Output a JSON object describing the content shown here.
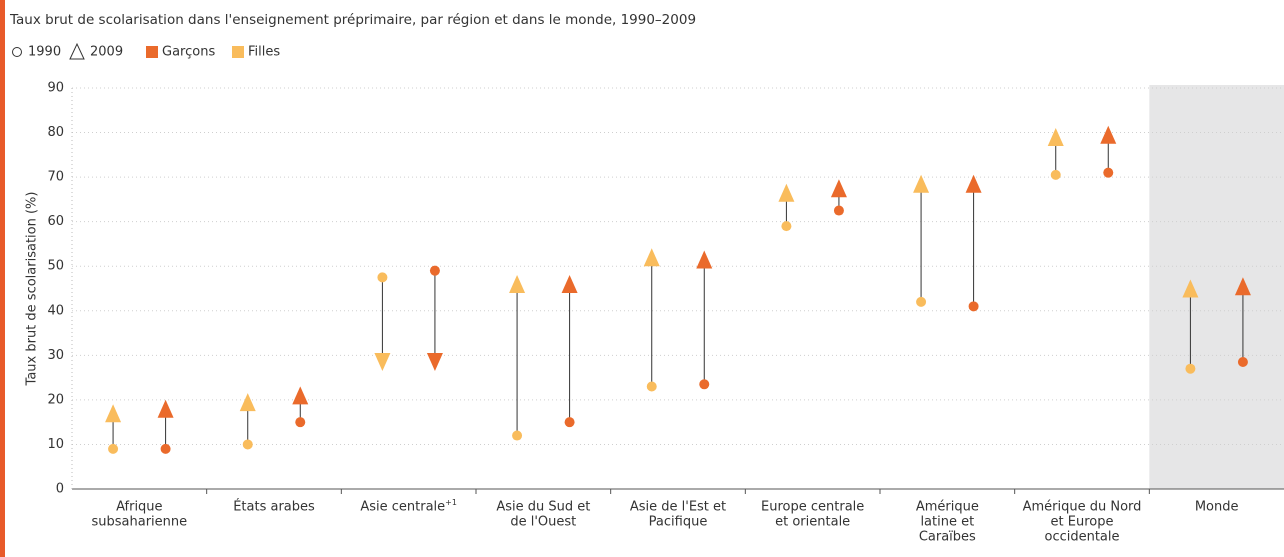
{
  "chart_data": {
    "type": "dumbbell",
    "title": "Taux brut de scolarisation dans l'enseignement préprimaire, par région et dans le monde, 1990–2009",
    "markers": [
      {
        "label": "1990",
        "shape": "circle"
      },
      {
        "label": "2009",
        "shape": "triangle"
      }
    ],
    "y_label": "Taux brut de scolarisation (%)",
    "categories": [
      [
        "Afrique",
        "subsaharienne"
      ],
      [
        "États arabes"
      ],
      [
        "Asie centrale"
      ],
      [
        "Asie du Sud et",
        "de l'Ouest"
      ],
      [
        "Asie de l'Est et",
        "Pacifique"
      ],
      [
        "Europe centrale",
        "et orientale"
      ],
      [
        "Amérique",
        "latine et",
        "Caraïbes"
      ],
      [
        "Amérique du Nord",
        "et Europe",
        "occidentale"
      ],
      [
        "Monde"
      ]
    ],
    "category_superscripts": [
      null,
      null,
      "+1",
      null,
      null,
      null,
      null,
      null,
      null
    ],
    "shaded_categories": [
      "Monde"
    ],
    "legend_order": [
      "Garçons",
      "Filles"
    ],
    "series": [
      {
        "name": "Filles",
        "color": "#f9bc5c",
        "start": [
          9,
          10,
          47.5,
          12,
          23,
          59,
          42,
          70.5,
          27
        ],
        "end": [
          17,
          19.5,
          28.5,
          46,
          52,
          66.5,
          68.5,
          79,
          45
        ]
      },
      {
        "name": "Garçons",
        "color": "#ea6a2b",
        "start": [
          9,
          15,
          49,
          15,
          23.5,
          62.5,
          41,
          71,
          28.5
        ],
        "end": [
          18,
          21,
          28.5,
          46,
          51.5,
          67.5,
          68.5,
          79.5,
          45.5
        ]
      }
    ],
    "ylim": [
      0,
      90
    ],
    "yticks": [
      0,
      10,
      20,
      30,
      40,
      50,
      60,
      70,
      80,
      90
    ],
    "grid": true
  }
}
